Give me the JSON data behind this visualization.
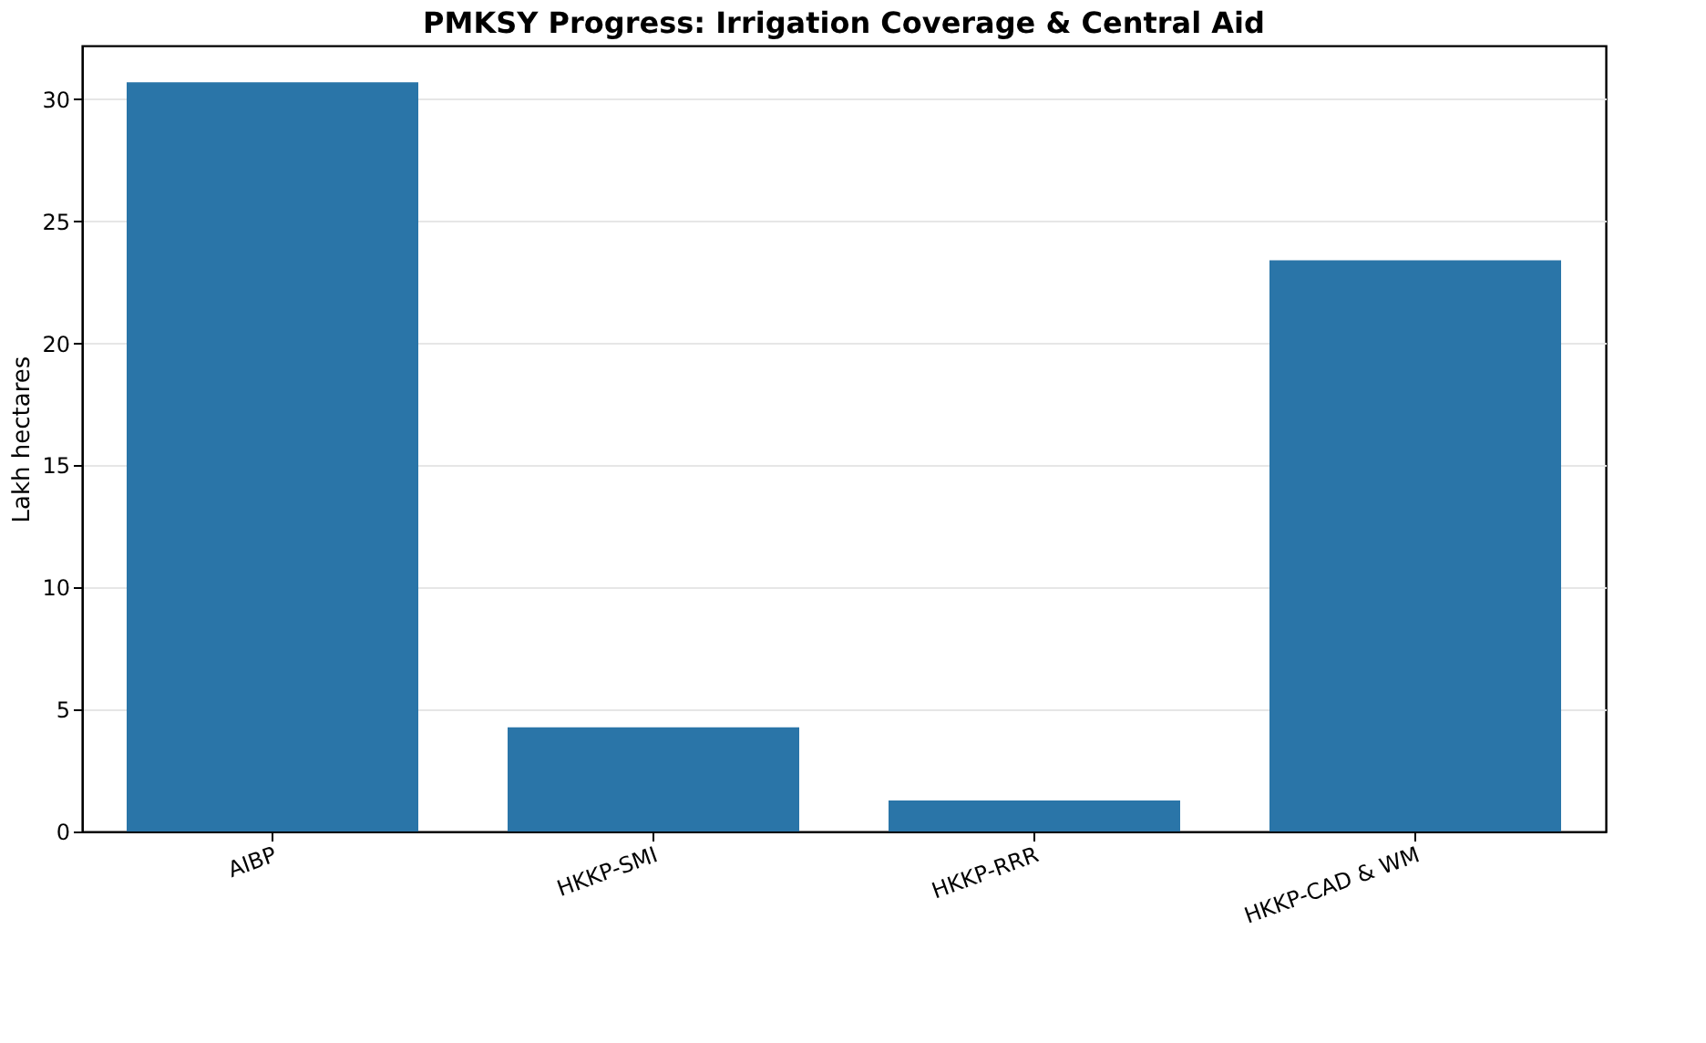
{
  "chart_data": {
    "type": "bar",
    "title": "PMKSY Progress: Irrigation Coverage & Central Aid",
    "ylabel": "Lakh hectares",
    "categories": [
      "AIBP",
      "HKKP-SMI",
      "HKKP-RRR",
      "HKKP-CAD & WM"
    ],
    "values": [
      30.7,
      4.27,
      1.27,
      23.4
    ],
    "color": "#2a75a8",
    "ylim": [
      0,
      32.2
    ],
    "yticks": [
      0,
      5,
      10,
      15,
      20,
      25,
      30
    ],
    "grid": "y"
  }
}
